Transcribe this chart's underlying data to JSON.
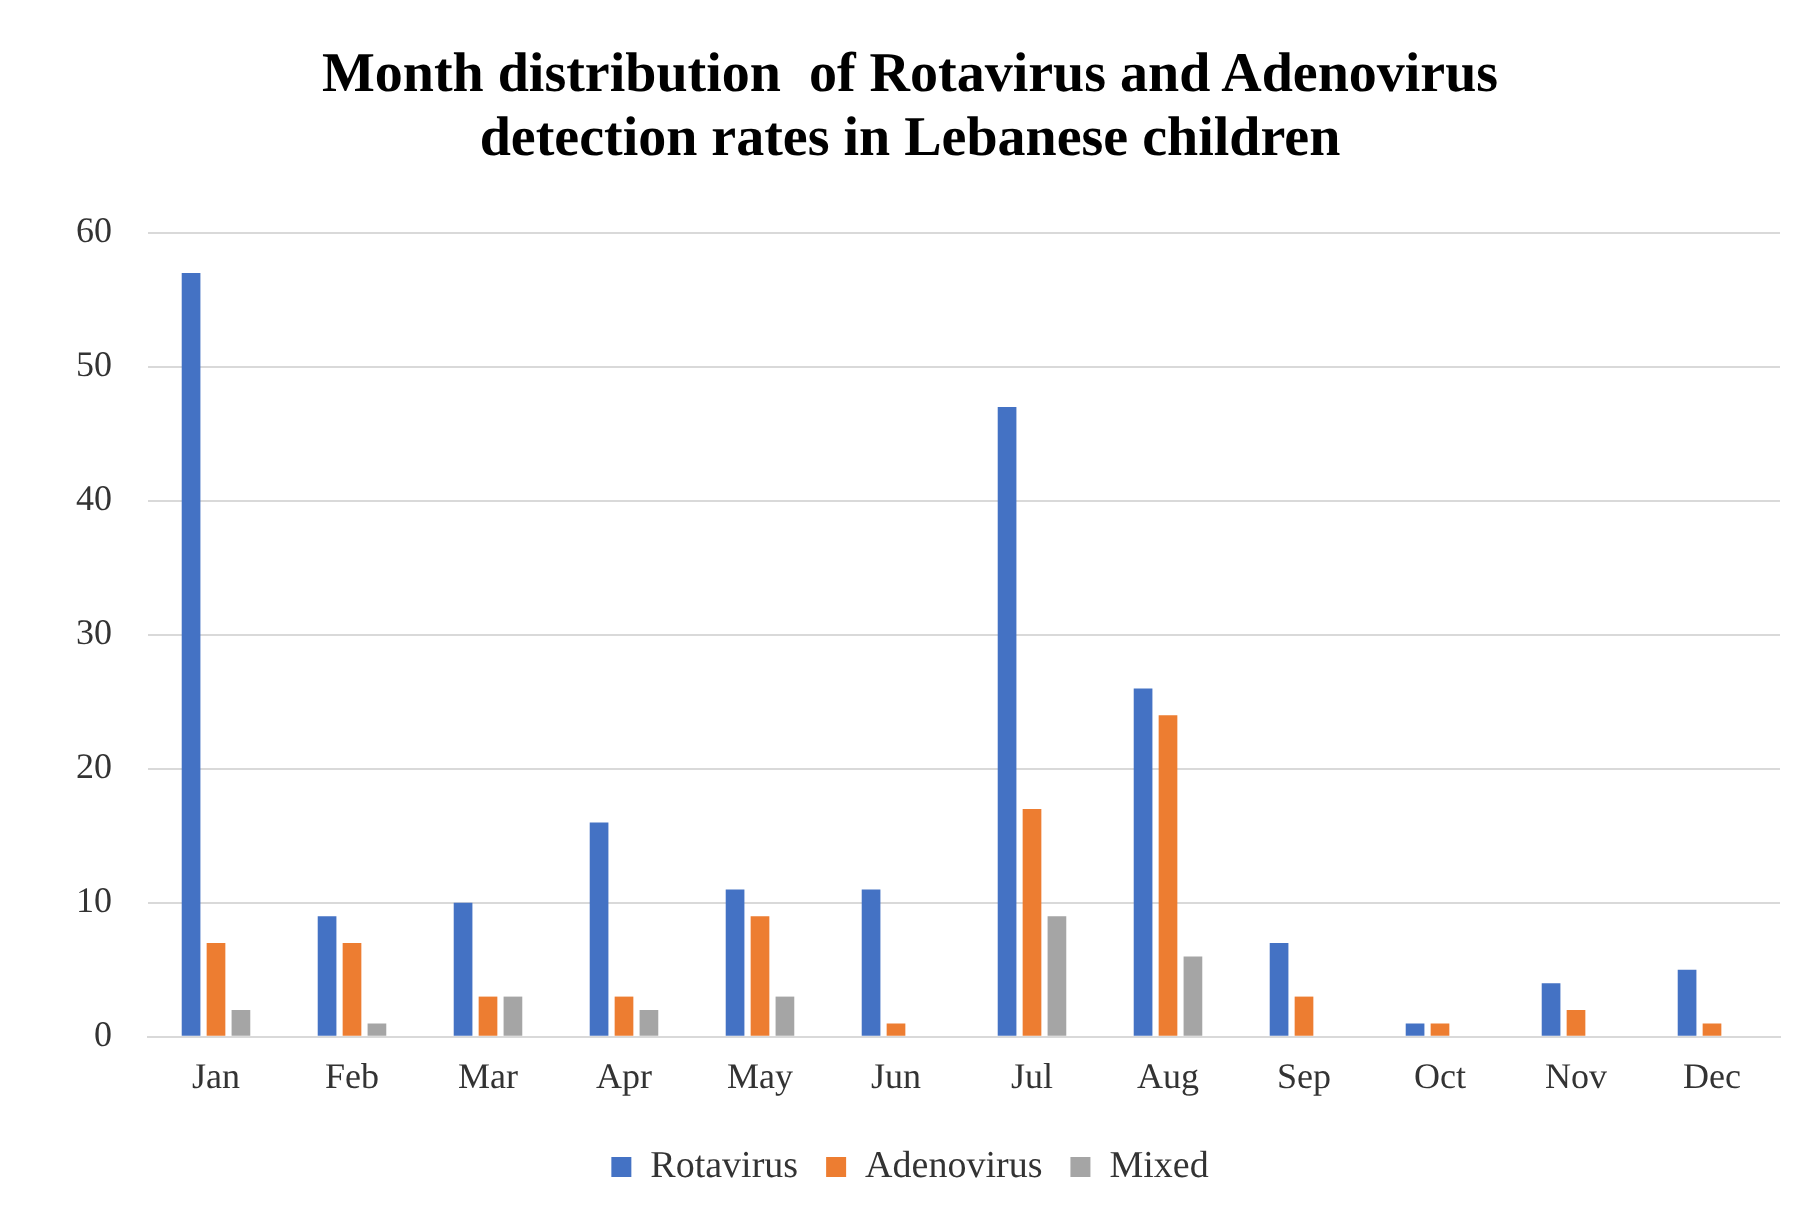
{
  "chart_data": {
    "type": "bar",
    "title": "Month distribution  of Rotavirus and Adenovirus detection rates in Lebanese children",
    "categories": [
      "Jan",
      "Feb",
      "Mar",
      "Apr",
      "May",
      "Jun",
      "Jul",
      "Aug",
      "Sep",
      "Oct",
      "Nov",
      "Dec"
    ],
    "series": [
      {
        "name": "Rotavirus",
        "color": "#4472c4",
        "values": [
          57,
          9,
          10,
          16,
          11,
          11,
          47,
          26,
          7,
          1,
          4,
          5
        ]
      },
      {
        "name": "Adenovirus",
        "color": "#ed7d31",
        "values": [
          7,
          7,
          3,
          3,
          9,
          1,
          17,
          24,
          3,
          1,
          2,
          1
        ]
      },
      {
        "name": "Mixed",
        "color": "#a5a5a5",
        "values": [
          2,
          1,
          3,
          2,
          3,
          0,
          9,
          6,
          0,
          0,
          0,
          0
        ]
      }
    ],
    "ylim": [
      0,
      60
    ],
    "yticks": [
      0,
      10,
      20,
      30,
      40,
      50,
      60
    ],
    "grid": "y",
    "legend": "bottom"
  }
}
